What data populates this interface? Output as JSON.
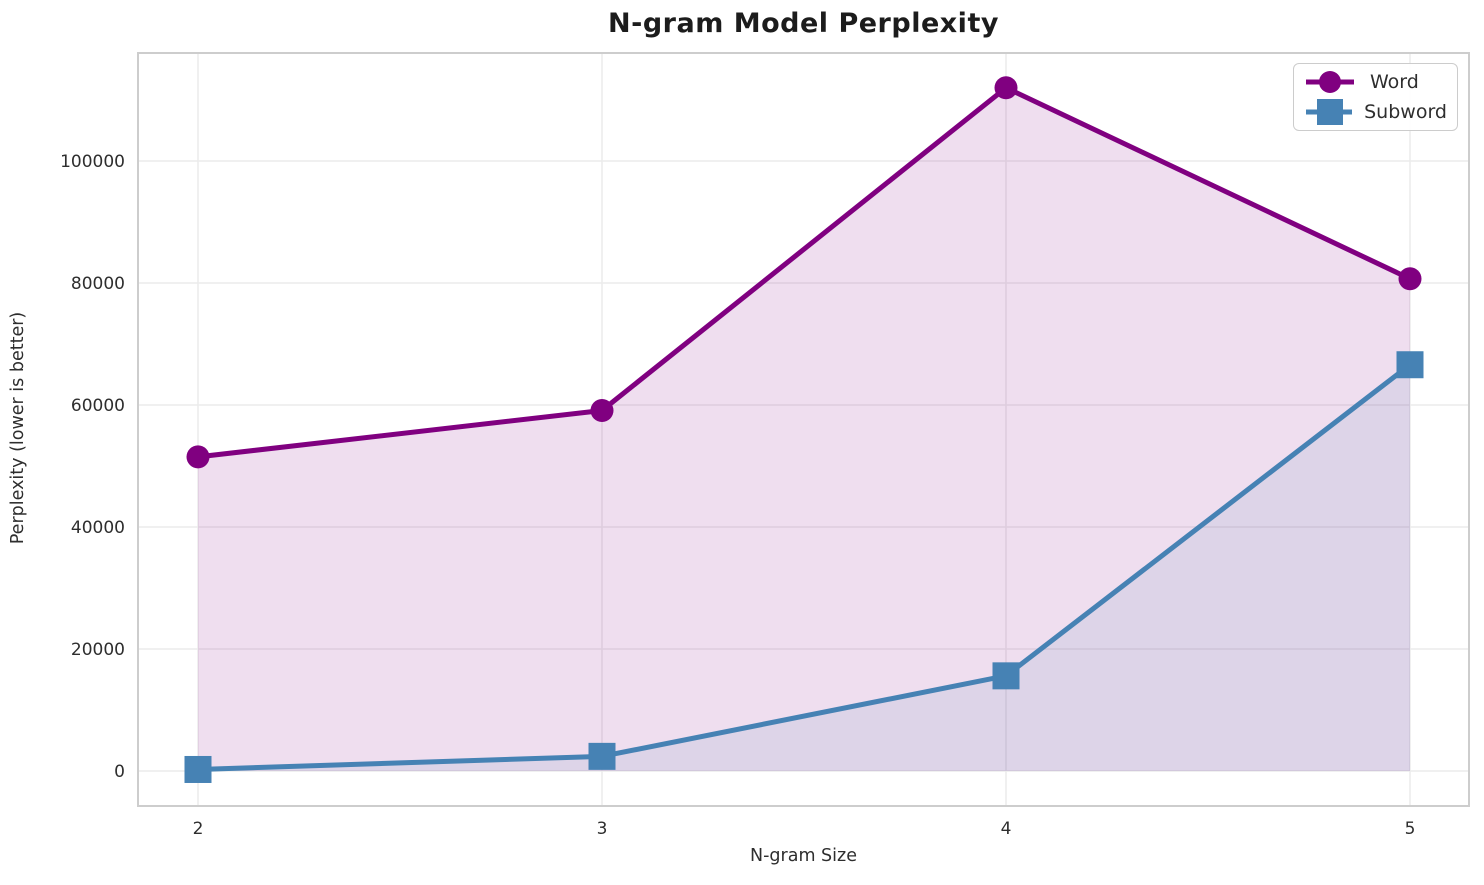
{
  "chart_data": {
    "type": "line",
    "title": "N-gram Model Perplexity",
    "xlabel": "N-gram Size",
    "ylabel": "Perplexity (lower is better)",
    "x": [
      2,
      3,
      4,
      5
    ],
    "xtick_labels": [
      "2",
      "3",
      "4",
      "5"
    ],
    "ytick_values": [
      0,
      20000,
      40000,
      60000,
      80000,
      100000
    ],
    "ytick_labels": [
      "0",
      "20000",
      "40000",
      "60000",
      "80000",
      "100000"
    ],
    "xlim": [
      1.85,
      5.15
    ],
    "ylim": [
      -5700,
      117700
    ],
    "grid": true,
    "legend_position": "upper right",
    "series": [
      {
        "name": "Word",
        "marker": "circle",
        "color": "#800080",
        "fill_alpha": 0.13,
        "values": [
          51500,
          59100,
          112000,
          80700
        ]
      },
      {
        "name": "Subword",
        "marker": "square",
        "color": "#4682B4",
        "fill_alpha": 0.1,
        "values": [
          250,
          2400,
          15600,
          66600
        ]
      }
    ]
  },
  "colors": {
    "grid": "#ececec",
    "spine": "#cdcdcd",
    "tick_text": "#2e2e2e",
    "title_text": "#1c1c1c",
    "background": "#ffffff"
  }
}
